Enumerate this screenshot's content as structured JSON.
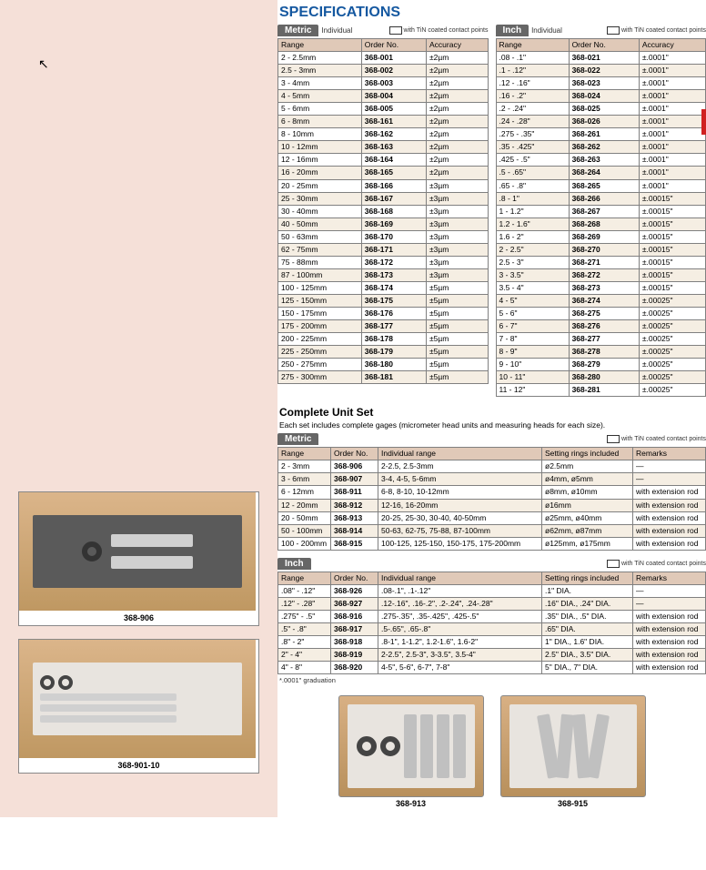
{
  "heading": "SPECIFICATIONS",
  "individual_label": "Individual",
  "tin_label": "with TiN coated contact points",
  "metric_label": "Metric",
  "inch_label": "Inch",
  "cols": {
    "range": "Range",
    "order": "Order No.",
    "accuracy": "Accuracy",
    "indiv": "Individual range",
    "rings": "Setting rings included",
    "remarks": "Remarks"
  },
  "metric_rows": [
    [
      "2 - 2.5mm",
      "368-001",
      "±2µm"
    ],
    [
      "2.5 - 3mm",
      "368-002",
      "±2µm"
    ],
    [
      "3 - 4mm",
      "368-003",
      "±2µm"
    ],
    [
      "4 - 5mm",
      "368-004",
      "±2µm"
    ],
    [
      "5 - 6mm",
      "368-005",
      "±2µm"
    ],
    [
      "6 - 8mm",
      "368-161",
      "±2µm"
    ],
    [
      "8 - 10mm",
      "368-162",
      "±2µm"
    ],
    [
      "10 - 12mm",
      "368-163",
      "±2µm"
    ],
    [
      "12 - 16mm",
      "368-164",
      "±2µm"
    ],
    [
      "16 - 20mm",
      "368-165",
      "±2µm"
    ],
    [
      "20 - 25mm",
      "368-166",
      "±3µm"
    ],
    [
      "25 - 30mm",
      "368-167",
      "±3µm"
    ],
    [
      "30 - 40mm",
      "368-168",
      "±3µm"
    ],
    [
      "40 - 50mm",
      "368-169",
      "±3µm"
    ],
    [
      "50 - 63mm",
      "368-170",
      "±3µm"
    ],
    [
      "62 - 75mm",
      "368-171",
      "±3µm"
    ],
    [
      "75 - 88mm",
      "368-172",
      "±3µm"
    ],
    [
      "87 - 100mm",
      "368-173",
      "±3µm"
    ],
    [
      "100 - 125mm",
      "368-174",
      "±5µm"
    ],
    [
      "125 - 150mm",
      "368-175",
      "±5µm"
    ],
    [
      "150 - 175mm",
      "368-176",
      "±5µm"
    ],
    [
      "175 - 200mm",
      "368-177",
      "±5µm"
    ],
    [
      "200 - 225mm",
      "368-178",
      "±5µm"
    ],
    [
      "225 - 250mm",
      "368-179",
      "±5µm"
    ],
    [
      "250 - 275mm",
      "368-180",
      "±5µm"
    ],
    [
      "275 - 300mm",
      "368-181",
      "±5µm"
    ]
  ],
  "inch_rows": [
    [
      ".08 - .1\"",
      "368-021",
      "±.0001\""
    ],
    [
      ".1 - .12\"",
      "368-022",
      "±.0001\""
    ],
    [
      ".12 - .16\"",
      "368-023",
      "±.0001\""
    ],
    [
      ".16 - .2\"",
      "368-024",
      "±.0001\""
    ],
    [
      ".2 - .24\"",
      "368-025",
      "±.0001\""
    ],
    [
      ".24 - .28\"",
      "368-026",
      "±.0001\""
    ],
    [
      ".275 - .35\"",
      "368-261",
      "±.0001\""
    ],
    [
      ".35 - .425\"",
      "368-262",
      "±.0001\""
    ],
    [
      ".425 - .5\"",
      "368-263",
      "±.0001\""
    ],
    [
      ".5 - .65\"",
      "368-264",
      "±.0001\""
    ],
    [
      ".65 - .8\"",
      "368-265",
      "±.0001\""
    ],
    [
      ".8 - 1\"",
      "368-266",
      "±.00015\""
    ],
    [
      "1 - 1.2\"",
      "368-267",
      "±.00015\""
    ],
    [
      "1.2 - 1.6\"",
      "368-268",
      "±.00015\""
    ],
    [
      "1.6 - 2\"",
      "368-269",
      "±.00015\""
    ],
    [
      "2 - 2.5\"",
      "368-270",
      "±.00015\""
    ],
    [
      "2.5 - 3\"",
      "368-271",
      "±.00015\""
    ],
    [
      "3 - 3.5\"",
      "368-272",
      "±.00015\""
    ],
    [
      "3.5 - 4\"",
      "368-273",
      "±.00015\""
    ],
    [
      "4 - 5\"",
      "368-274",
      "±.00025\""
    ],
    [
      "5 - 6\"",
      "368-275",
      "±.00025\""
    ],
    [
      "6 - 7\"",
      "368-276",
      "±.00025\""
    ],
    [
      "7 - 8\"",
      "368-277",
      "±.00025\""
    ],
    [
      "8 - 9\"",
      "368-278",
      "±.00025\""
    ],
    [
      "9 - 10\"",
      "368-279",
      "±.00025\""
    ],
    [
      "10 - 11\"",
      "368-280",
      "±.00025\""
    ],
    [
      "11 - 12\"",
      "368-281",
      "±.00025\""
    ]
  ],
  "set_title": "Complete Unit Set",
  "set_desc": "Each set includes complete gages (micrometer head units and measuring heads for each size).",
  "set_metric": [
    [
      "2 - 3mm",
      "368-906",
      "2-2.5, 2.5-3mm",
      "ø2.5mm",
      "—"
    ],
    [
      "3 - 6mm",
      "368-907",
      "3-4, 4-5, 5-6mm",
      "ø4mm, ø5mm",
      "—"
    ],
    [
      "6 - 12mm",
      "368-911",
      "6-8, 8-10, 10-12mm",
      "ø8mm, ø10mm",
      "with extension rod"
    ],
    [
      "12 - 20mm",
      "368-912",
      "12-16, 16-20mm",
      "ø16mm",
      "with extension rod"
    ],
    [
      "20 - 50mm",
      "368-913",
      "20-25, 25-30, 30-40, 40-50mm",
      "ø25mm, ø40mm",
      "with extension rod"
    ],
    [
      "50 - 100mm",
      "368-914",
      "50-63, 62-75, 75-88, 87-100mm",
      "ø62mm, ø87mm",
      "with extension rod"
    ],
    [
      "100 - 200mm",
      "368-915",
      "100-125, 125-150, 150-175, 175-200mm",
      "ø125mm, ø175mm",
      "with extension rod"
    ]
  ],
  "set_inch": [
    [
      ".08\" - .12\"",
      "368-926",
      ".08-.1\", .1-.12\"",
      ".1\" DIA.",
      "—"
    ],
    [
      ".12\" - .28\"",
      "368-927",
      ".12-.16\", .16-.2\", .2-.24\", .24-.28\"",
      ".16\" DIA., .24\" DIA.",
      "—"
    ],
    [
      ".275\" - .5\"",
      "368-916",
      ".275-.35\", .35-.425\", .425-.5\"",
      ".35\" DIA., .5\" DIA.",
      "with extension rod"
    ],
    [
      ".5\" - .8\"",
      "368-917",
      ".5-.65\", .65-.8\"",
      ".65\" DIA.",
      "with extension rod"
    ],
    [
      ".8\" - 2\"",
      "368-918",
      ".8-1\", 1-1.2\", 1.2-1.6\", 1.6-2\"",
      "1\" DIA., 1.6\" DIA.",
      "with extension rod"
    ],
    [
      "2\" - 4\"",
      "368-919",
      "2-2.5\", 2.5-3\", 3-3.5\", 3.5-4\"",
      "2.5\" DIA., 3.5\" DIA.",
      "with extension rod"
    ],
    [
      "4\" - 8\"",
      "368-920",
      "4-5\", 5-6\", 6-7\", 7-8\"",
      "5\" DIA., 7\" DIA.",
      "with extension rod"
    ]
  ],
  "footnote": "*.0001\" graduation",
  "prod": {
    "p1": "368-913",
    "p2": "368-915"
  },
  "left_prod": {
    "p1": "368-906",
    "p2": "368-901-10"
  }
}
